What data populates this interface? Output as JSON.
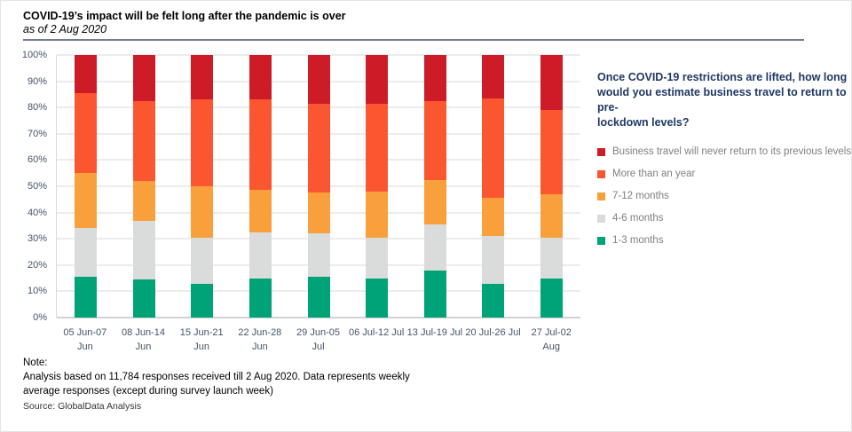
{
  "header": {
    "title": "COVID-19’s impact will be felt long after the pandemic is over",
    "subtitle": "as of 2 Aug 2020"
  },
  "legend_panel": {
    "question_lines": [
      "Once COVID-19 restrictions are lifted, how long",
      "would you estimate business travel to return to pre-",
      "lockdown levels?"
    ]
  },
  "notes": {
    "heading": "Note:",
    "body_lines": [
      "Analysis based on 11,784 responses received till 2 Aug 2020. Data represents weekly",
      "average responses (except during survey launch week)"
    ],
    "source": "Source: GlobalData Analysis"
  },
  "colors": {
    "never": "#ce1b28",
    "more_than_year": "#fa5630",
    "m7_12": "#f9a03c",
    "m4_6": "#d9dcdb",
    "m1_3": "#00a378",
    "axis_text": "#44546a",
    "gridline": "#d9d9d9",
    "question_text": "#1f3864",
    "legend_text": "#7f7f7f",
    "divider": "#757b95"
  },
  "chart_data": {
    "type": "bar",
    "subtype": "stacked-100",
    "title": "COVID-19’s impact will be felt long after the pandemic is over",
    "xlabel": "",
    "ylabel": "",
    "grid": true,
    "legend_position": "right",
    "y_axis": {
      "min": 0,
      "max": 100,
      "step": 10,
      "suffix": "%"
    },
    "categories": [
      "05 Jun-07 Jun",
      "08 Jun-14 Jun",
      "15 Jun-21 Jun",
      "22 Jun-28 Jun",
      "29 Jun-05 Jul",
      "06 Jul-12 Jul",
      "13 Jul-19 Jul",
      "20 Jul-26 Jul",
      "27 Jul-02 Aug"
    ],
    "category_label_lines": [
      [
        "05 Jun-07",
        "Jun"
      ],
      [
        "08 Jun-14",
        "Jun"
      ],
      [
        "15 Jun-21",
        "Jun"
      ],
      [
        "22 Jun-28",
        "Jun"
      ],
      [
        "29 Jun-05 Jul"
      ],
      [
        "06 Jul-12 Jul"
      ],
      [
        "13 Jul-19 Jul"
      ],
      [
        "20 Jul-26 Jul"
      ],
      [
        "27 Jul-02",
        "Aug"
      ]
    ],
    "series": [
      {
        "name": "1-3 months",
        "color": "#00a378",
        "values": [
          15.5,
          14.5,
          13,
          15,
          15.5,
          15,
          18,
          13,
          15
        ]
      },
      {
        "name": "4-6 months",
        "color": "#d9dcdb",
        "values": [
          18.5,
          22.5,
          17.5,
          17.5,
          16.5,
          15.5,
          17.5,
          18,
          15.5
        ]
      },
      {
        "name": "7-12 months",
        "color": "#f9a03c",
        "values": [
          21,
          15,
          19.5,
          16,
          15.5,
          17.5,
          17,
          14.5,
          16.5
        ]
      },
      {
        "name": "More than an year",
        "color": "#fa5630",
        "values": [
          30.5,
          30.5,
          33,
          34.5,
          34,
          33.5,
          30,
          38,
          32
        ]
      },
      {
        "name": "Business travel will never return to its previous levels",
        "color": "#ce1b28",
        "values": [
          14.5,
          17.5,
          17,
          17,
          18.5,
          18.5,
          17.5,
          16.5,
          21
        ]
      }
    ]
  }
}
